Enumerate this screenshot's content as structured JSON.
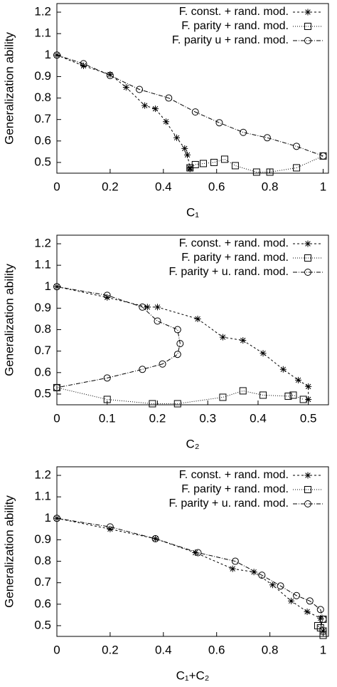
{
  "chart_data": [
    {
      "type": "line",
      "xlabel": "C₁",
      "ylabel": "Generalization ability",
      "xlim": [
        0,
        1.02
      ],
      "ylim": [
        0.45,
        1.24
      ],
      "xticks": [
        0,
        0.2,
        0.4,
        0.6,
        0.8,
        1
      ],
      "yticks": [
        0.5,
        0.6,
        0.7,
        0.8,
        0.9,
        1,
        1.1,
        1.2
      ],
      "legend": "top-right",
      "series": [
        {
          "name": "F. const. + rand. mod.",
          "color": "#000000",
          "marker": "star",
          "dash": "3,3",
          "x": [
            0,
            0.1,
            0.2,
            0.26,
            0.33,
            0.37,
            0.41,
            0.45,
            0.48,
            0.49,
            0.5,
            0.5
          ],
          "values": [
            1,
            0.95,
            0.91,
            0.85,
            0.765,
            0.75,
            0.69,
            0.615,
            0.565,
            0.535,
            0.475,
            0.47
          ]
        },
        {
          "name": "F. parity  + rand. mod.",
          "color": "#000000",
          "marker": "square",
          "dash": "1,2",
          "x": [
            0.5,
            0.52,
            0.55,
            0.59,
            0.63,
            0.67,
            0.75,
            0.8,
            0.9,
            1
          ],
          "values": [
            0.475,
            0.49,
            0.495,
            0.5,
            0.515,
            0.485,
            0.455,
            0.455,
            0.475,
            0.53
          ]
        },
        {
          "name": "F. parity u + rand. mod.",
          "color": "#000000",
          "marker": "circle",
          "dash": "6,2,1,2",
          "x": [
            0,
            0.1,
            0.2,
            0.31,
            0.42,
            0.52,
            0.61,
            0.7,
            0.79,
            0.9,
            1
          ],
          "values": [
            1,
            0.96,
            0.905,
            0.84,
            0.8,
            0.735,
            0.685,
            0.64,
            0.615,
            0.575,
            0.53
          ]
        }
      ]
    },
    {
      "type": "line",
      "xlabel": "C₂",
      "ylabel": "Generalization ability",
      "xlim": [
        0,
        0.54
      ],
      "ylim": [
        0.45,
        1.24
      ],
      "xticks": [
        0,
        0.1,
        0.2,
        0.3,
        0.4,
        0.5
      ],
      "yticks": [
        0.5,
        0.6,
        0.7,
        0.8,
        0.9,
        1,
        1.1,
        1.2
      ],
      "legend": "top-right",
      "series": [
        {
          "name": "F. const. + rand. mod.",
          "color": "#000000",
          "marker": "star",
          "dash": "3,3",
          "x": [
            0,
            0.1,
            0.18,
            0.2,
            0.28,
            0.33,
            0.37,
            0.41,
            0.45,
            0.48,
            0.5,
            0.5
          ],
          "values": [
            1,
            0.95,
            0.905,
            0.905,
            0.85,
            0.765,
            0.75,
            0.69,
            0.615,
            0.565,
            0.535,
            0.475
          ]
        },
        {
          "name": "F. parity  + rand. mod.",
          "color": "#000000",
          "marker": "square",
          "dash": "1,2",
          "x": [
            0,
            0.1,
            0.19,
            0.24,
            0.33,
            0.37,
            0.41,
            0.46,
            0.47,
            0.49
          ],
          "values": [
            0.53,
            0.475,
            0.455,
            0.455,
            0.485,
            0.515,
            0.495,
            0.49,
            0.495,
            0.475
          ]
        },
        {
          "name": "F. parity  + u. rand. mod.",
          "color": "#000000",
          "marker": "circle",
          "dash": "6,2,1,2",
          "x": [
            0,
            0.1,
            0.17,
            0.2,
            0.24,
            0.245,
            0.24,
            0.21,
            0.17,
            0.1,
            0
          ],
          "values": [
            1,
            0.96,
            0.905,
            0.84,
            0.8,
            0.735,
            0.685,
            0.64,
            0.615,
            0.575,
            0.53
          ]
        }
      ]
    },
    {
      "type": "line",
      "xlabel": "C₁+C₂",
      "ylabel": "Generalization ability",
      "xlim": [
        0,
        1.02
      ],
      "ylim": [
        0.45,
        1.24
      ],
      "xticks": [
        0,
        0.2,
        0.4,
        0.6,
        0.8,
        1
      ],
      "yticks": [
        0.5,
        0.6,
        0.7,
        0.8,
        0.9,
        1,
        1.1,
        1.2
      ],
      "legend": "top-right",
      "series": [
        {
          "name": "F. const. + rand. mod.",
          "color": "#000000",
          "marker": "star",
          "dash": "3,3",
          "x": [
            0,
            0.2,
            0.37,
            0.52,
            0.66,
            0.74,
            0.81,
            0.88,
            0.94,
            0.99,
            1
          ],
          "values": [
            1,
            0.95,
            0.905,
            0.84,
            0.765,
            0.75,
            0.69,
            0.615,
            0.565,
            0.535,
            0.475
          ]
        },
        {
          "name": "F. parity  + rand. mod.",
          "color": "#000000",
          "marker": "square",
          "dash": "1,2",
          "x": [
            1,
            0.99,
            0.98,
            1,
            1
          ],
          "values": [
            0.53,
            0.49,
            0.5,
            0.475,
            0.455
          ]
        },
        {
          "name": "F. parity  + u. rand. mod.",
          "color": "#000000",
          "marker": "circle",
          "dash": "6,2,1,2",
          "x": [
            0,
            0.2,
            0.37,
            0.53,
            0.67,
            0.77,
            0.84,
            0.9,
            0.95,
            0.99,
            1
          ],
          "values": [
            1,
            0.96,
            0.905,
            0.84,
            0.8,
            0.735,
            0.685,
            0.64,
            0.615,
            0.575,
            0.53
          ]
        }
      ]
    }
  ]
}
